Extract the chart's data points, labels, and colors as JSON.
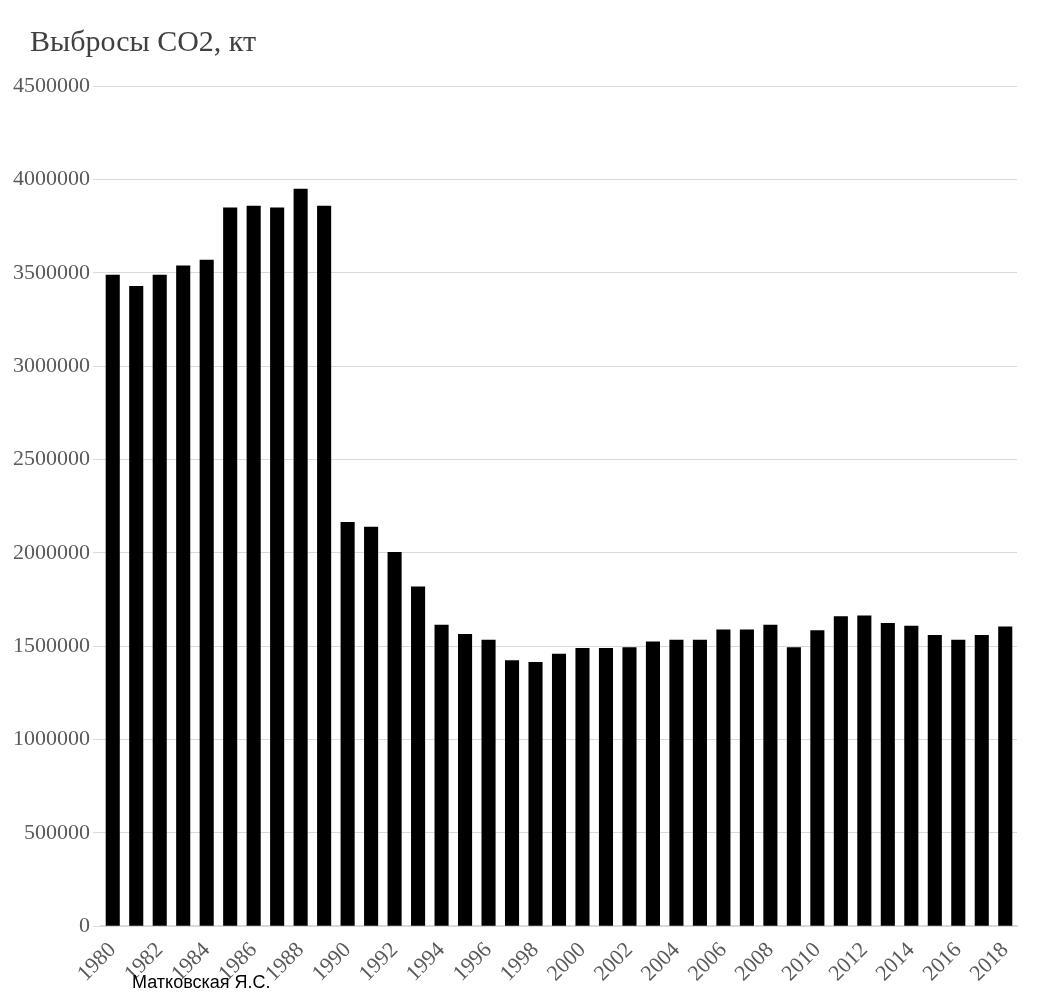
{
  "chart_data": {
    "type": "bar",
    "title": "Выбросы CO2, кт",
    "categories": [
      "1980",
      null,
      "1982",
      null,
      "1984",
      null,
      "1986",
      null,
      "1988",
      null,
      "1990",
      null,
      "1992",
      null,
      "1994",
      null,
      "1996",
      null,
      "1998",
      null,
      "2000",
      null,
      "2002",
      null,
      "2004",
      null,
      "2006",
      null,
      "2008",
      null,
      "2010",
      null,
      "2012",
      null,
      "2014",
      null,
      "2016",
      null,
      "2018"
    ],
    "values": [
      3490000,
      3430000,
      3490000,
      3540000,
      3570000,
      3850000,
      3860000,
      3850000,
      3950000,
      3860000,
      2165000,
      2140000,
      2005000,
      1820000,
      1615000,
      1565000,
      1535000,
      1425000,
      1415000,
      1460000,
      1490000,
      1490000,
      1495000,
      1525000,
      1535000,
      1535000,
      1590000,
      1590000,
      1615000,
      1495000,
      1585000,
      1660000,
      1665000,
      1625000,
      1610000,
      1560000,
      1535000,
      1560000,
      1605000
    ],
    "color": "#000000",
    "ylim": [
      0,
      4500000
    ],
    "yticks": [
      0,
      500000,
      1000000,
      1500000,
      2000000,
      2500000,
      3000000,
      3500000,
      4000000,
      4500000
    ],
    "grid": "y",
    "legend": false,
    "annotations": [
      "Матковская Я.С."
    ]
  }
}
